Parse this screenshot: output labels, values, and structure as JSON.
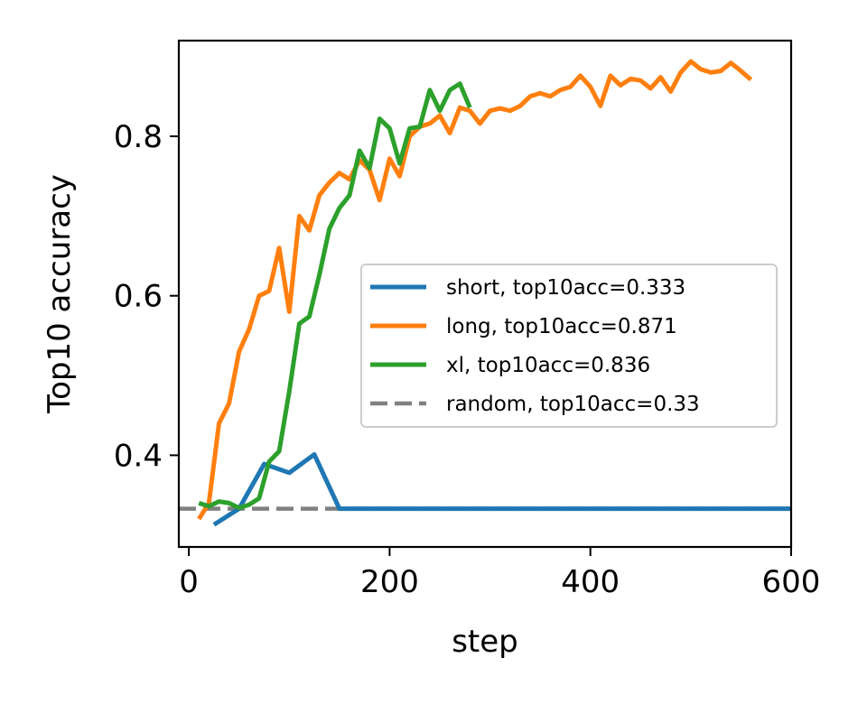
{
  "chart_data": {
    "type": "line",
    "xlabel": "step",
    "ylabel": "Top10 accuracy",
    "xlim": [
      -10,
      600
    ],
    "ylim": [
      0.285,
      0.92
    ],
    "xticks": [
      0,
      200,
      400,
      600
    ],
    "xtick_labels": [
      "0",
      "200",
      "400",
      "600"
    ],
    "yticks": [
      0.4,
      0.6,
      0.8
    ],
    "ytick_labels": [
      "0.4",
      "0.6",
      "0.8"
    ],
    "grid": false,
    "legend_position": "center-right",
    "series": [
      {
        "name": "short, top10acc=0.333",
        "color": "#1f77b4",
        "style": "solid",
        "x": [
          25,
          50,
          75,
          100,
          125,
          150,
          175,
          200,
          250,
          300,
          350,
          400,
          450,
          500,
          550,
          600
        ],
        "y": [
          0.313,
          0.333,
          0.389,
          0.378,
          0.401,
          0.333,
          0.333,
          0.333,
          0.333,
          0.333,
          0.333,
          0.333,
          0.333,
          0.333,
          0.333,
          0.333
        ]
      },
      {
        "name": "long, top10acc=0.871",
        "color": "#ff7f0e",
        "style": "solid",
        "x": [
          10,
          20,
          30,
          40,
          50,
          60,
          70,
          80,
          90,
          100,
          110,
          120,
          130,
          140,
          150,
          160,
          170,
          180,
          190,
          200,
          210,
          220,
          230,
          240,
          250,
          260,
          270,
          280,
          290,
          300,
          310,
          320,
          330,
          340,
          350,
          360,
          370,
          380,
          390,
          400,
          410,
          420,
          430,
          440,
          450,
          460,
          470,
          480,
          490,
          500,
          510,
          520,
          530,
          540,
          550,
          560
        ],
        "y": [
          0.32,
          0.34,
          0.44,
          0.465,
          0.53,
          0.558,
          0.6,
          0.606,
          0.66,
          0.58,
          0.7,
          0.682,
          0.726,
          0.742,
          0.754,
          0.746,
          0.77,
          0.758,
          0.72,
          0.772,
          0.75,
          0.8,
          0.812,
          0.816,
          0.826,
          0.804,
          0.836,
          0.832,
          0.816,
          0.832,
          0.835,
          0.832,
          0.838,
          0.85,
          0.854,
          0.85,
          0.858,
          0.862,
          0.876,
          0.862,
          0.838,
          0.876,
          0.864,
          0.872,
          0.87,
          0.86,
          0.874,
          0.856,
          0.88,
          0.894,
          0.884,
          0.88,
          0.882,
          0.892,
          0.882,
          0.871
        ]
      },
      {
        "name": "xl, top10acc=0.836",
        "color": "#2ca02c",
        "style": "solid",
        "x": [
          10,
          20,
          30,
          40,
          50,
          60,
          70,
          80,
          90,
          100,
          110,
          120,
          130,
          140,
          150,
          160,
          170,
          180,
          190,
          200,
          210,
          220,
          230,
          240,
          250,
          260,
          270,
          280
        ],
        "y": [
          0.34,
          0.336,
          0.342,
          0.34,
          0.334,
          0.338,
          0.346,
          0.392,
          0.405,
          0.48,
          0.565,
          0.574,
          0.626,
          0.684,
          0.71,
          0.726,
          0.782,
          0.76,
          0.822,
          0.81,
          0.766,
          0.81,
          0.812,
          0.858,
          0.832,
          0.858,
          0.866,
          0.836
        ]
      },
      {
        "name": "random, top10acc=0.33",
        "color": "#808080",
        "style": "dashed",
        "x": [
          -10,
          600
        ],
        "y": [
          0.333,
          0.333
        ]
      }
    ]
  }
}
